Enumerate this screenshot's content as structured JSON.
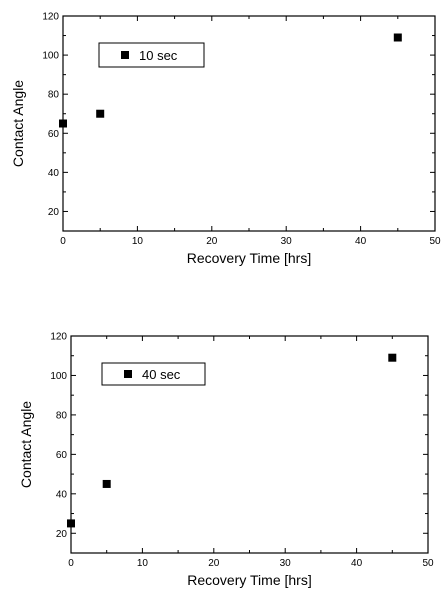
{
  "chart_data": [
    {
      "type": "scatter",
      "title": "",
      "xlabel": "Recovery Time [hrs]",
      "ylabel": "Contact Angle",
      "xlim": [
        0,
        50
      ],
      "ylim": [
        10,
        120
      ],
      "xticks": [
        0,
        10,
        20,
        30,
        40,
        50
      ],
      "yticks": [
        20,
        40,
        60,
        80,
        100,
        120
      ],
      "grid": false,
      "legend_position": "top-left",
      "series": [
        {
          "name": "10 sec",
          "x": [
            0,
            5,
            45
          ],
          "y": [
            65,
            70,
            109
          ]
        }
      ]
    },
    {
      "type": "scatter",
      "title": "",
      "xlabel": "Recovery Time [hrs]",
      "ylabel": "Contact Angle",
      "xlim": [
        0,
        50
      ],
      "ylim": [
        10,
        120
      ],
      "xticks": [
        0,
        10,
        20,
        30,
        40,
        50
      ],
      "yticks": [
        20,
        40,
        60,
        80,
        100,
        120
      ],
      "grid": false,
      "legend_position": "top-left",
      "series": [
        {
          "name": "40 sec",
          "x": [
            0,
            5,
            45
          ],
          "y": [
            25,
            45,
            109
          ]
        }
      ]
    }
  ],
  "colors": {
    "marker": "#000000",
    "axis": "#000000"
  }
}
